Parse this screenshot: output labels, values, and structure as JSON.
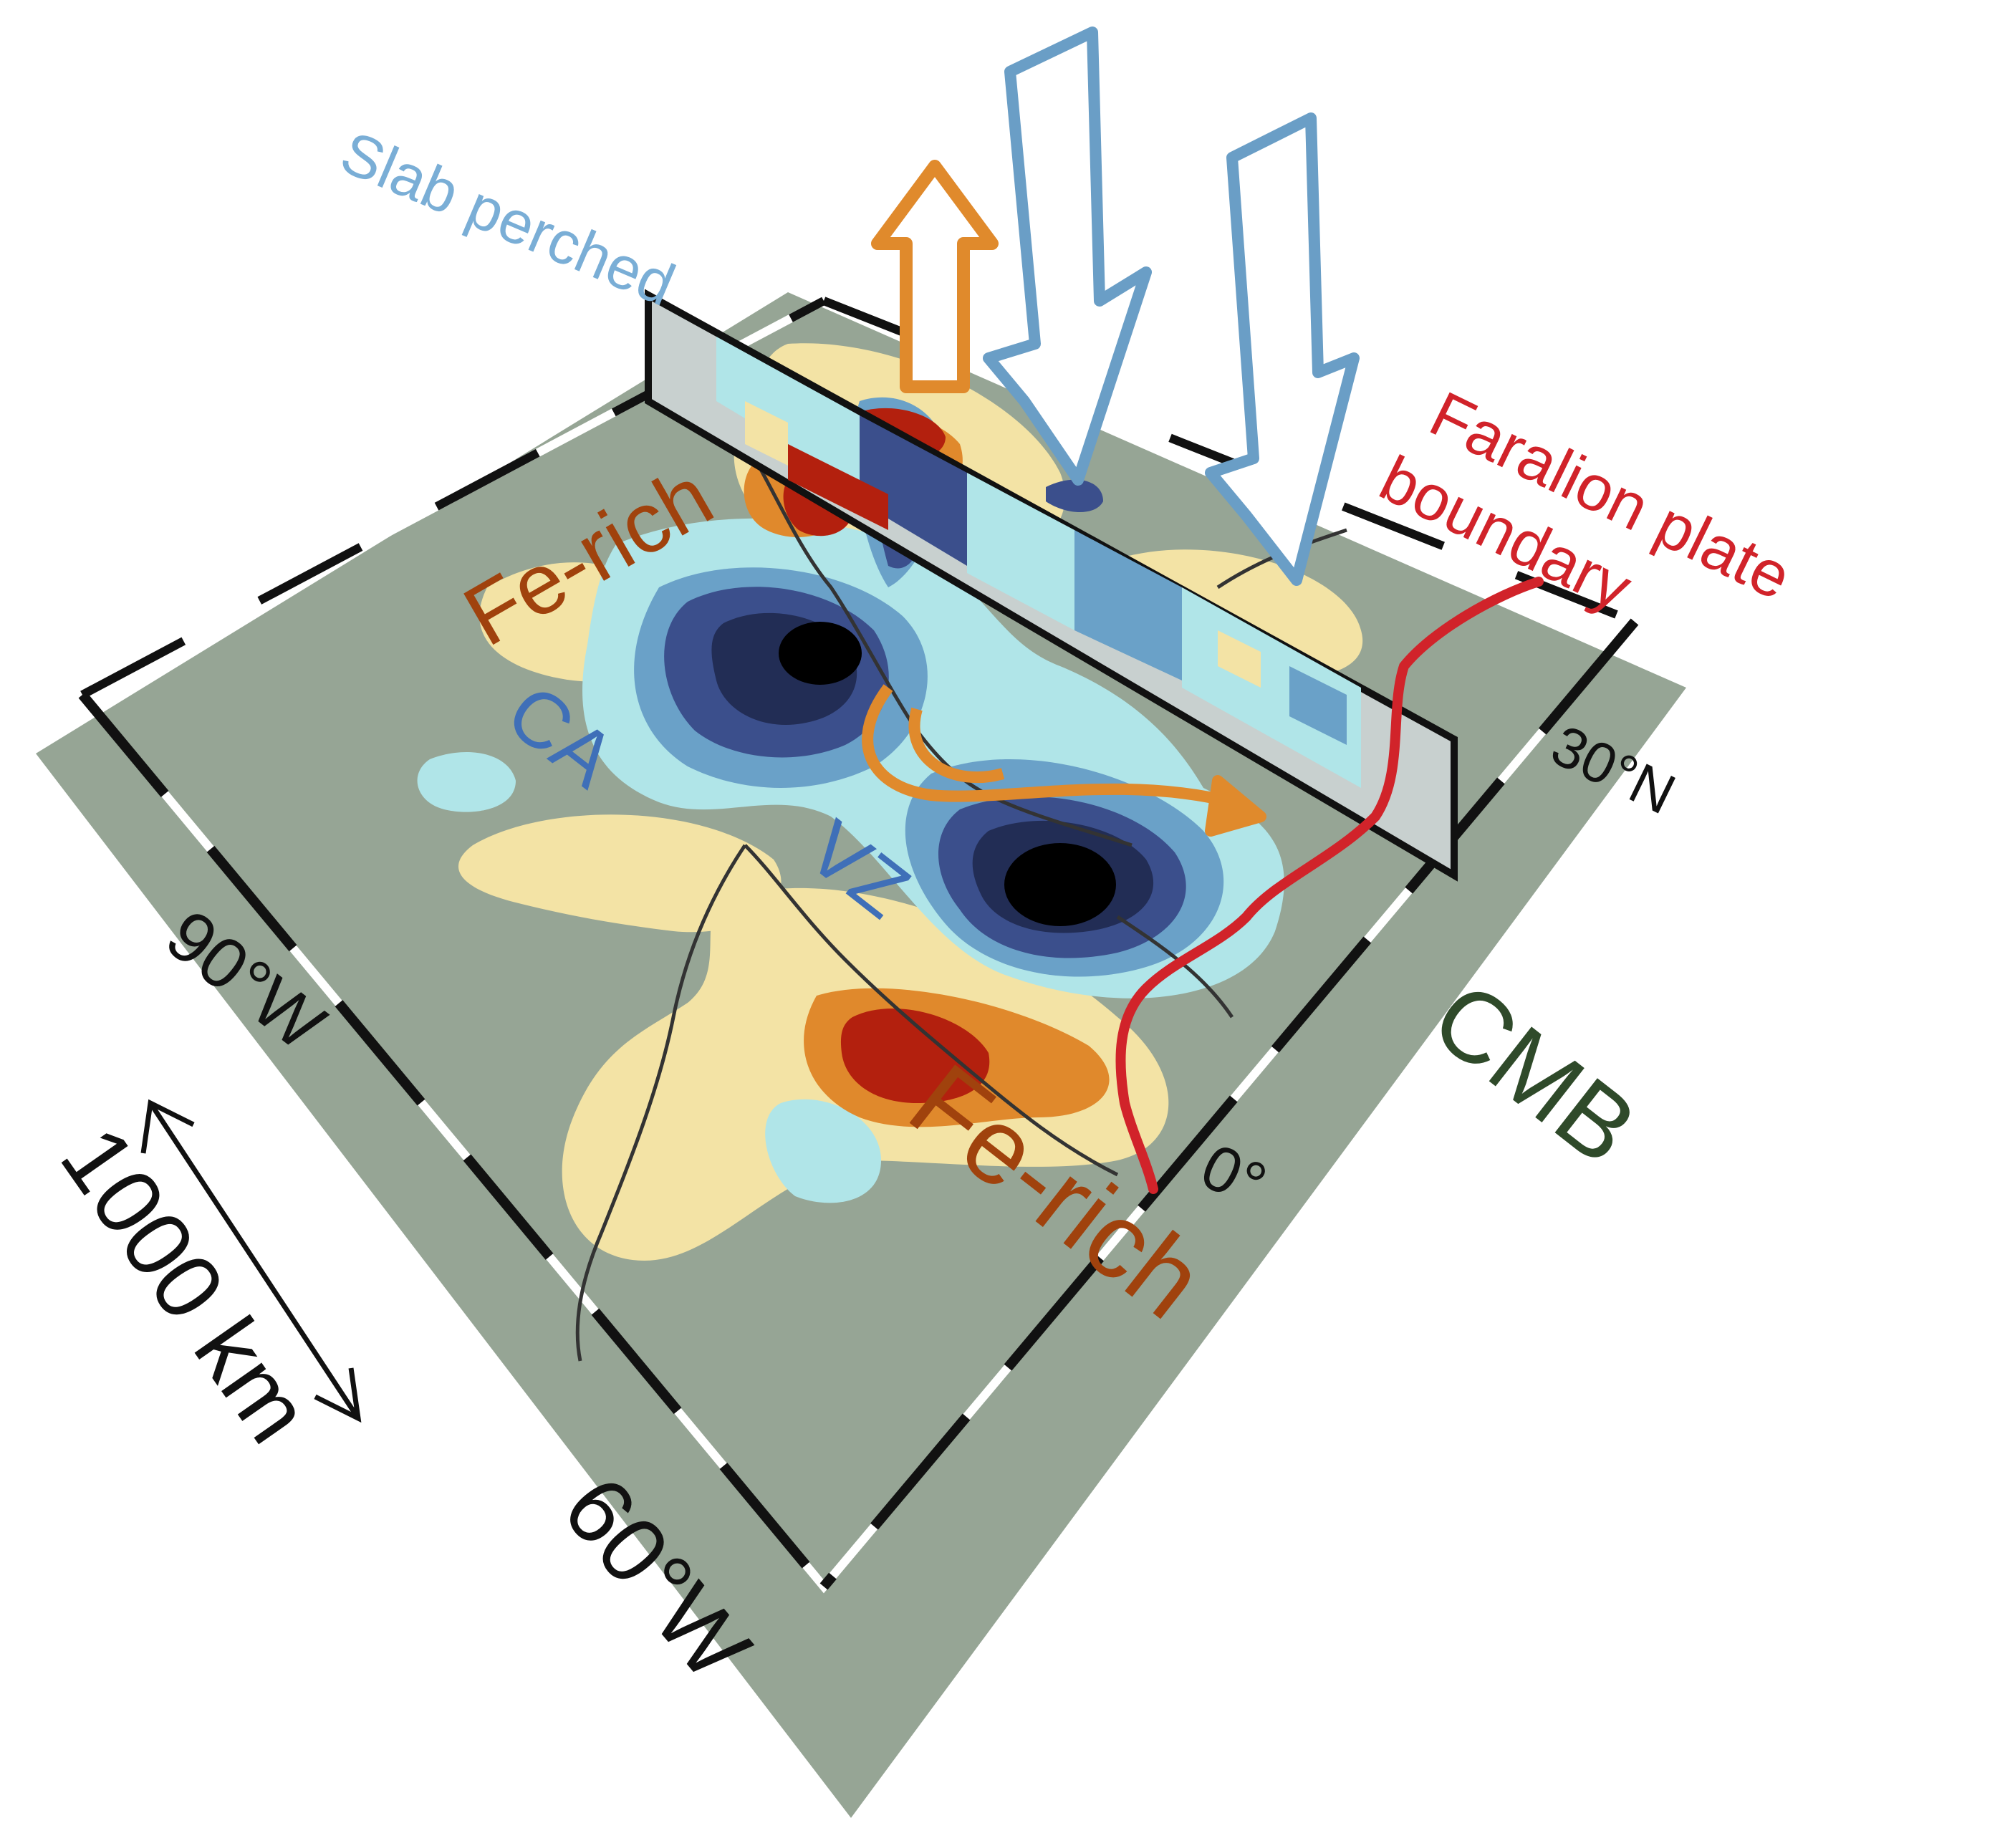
{
  "labels": {
    "slab_perched": "Slab perched",
    "fe_rich_upper": "Fe-rich",
    "fe_rich_lower": "Fe-rich",
    "ca": "CA",
    "vz": "VZ",
    "cmb": "CMB",
    "farallon_line1": "Faralion plate",
    "farallon_line2": "boundary",
    "scale_bar": "1000 km"
  },
  "axis_ticks": {
    "lon_90w": "90°W",
    "lon_60w": "60°W",
    "lat_30n": "30°N",
    "lat_0": "0°"
  },
  "colors": {
    "cmb_plane": "#96a595",
    "slab_blue_arrow": "#6a9ec6",
    "upwelling_orange": "#e08a2c",
    "farallon_red": "#d1232a",
    "fe_rich_text": "#a0420d",
    "ca_vz_text": "#3f6fb8",
    "cmb_text": "#2f4a2a",
    "slab_text": "#7aaed6",
    "anomaly_red": "#b3200e",
    "anomaly_orange": "#e0892c",
    "anomaly_yellow": "#f3e3a5",
    "anomaly_lightblue": "#b0e5e8",
    "anomaly_blue": "#6aa1c8",
    "anomaly_navy": "#3b4f8c",
    "anomaly_darknavy": "#222d55",
    "anomaly_black": "#000000"
  }
}
